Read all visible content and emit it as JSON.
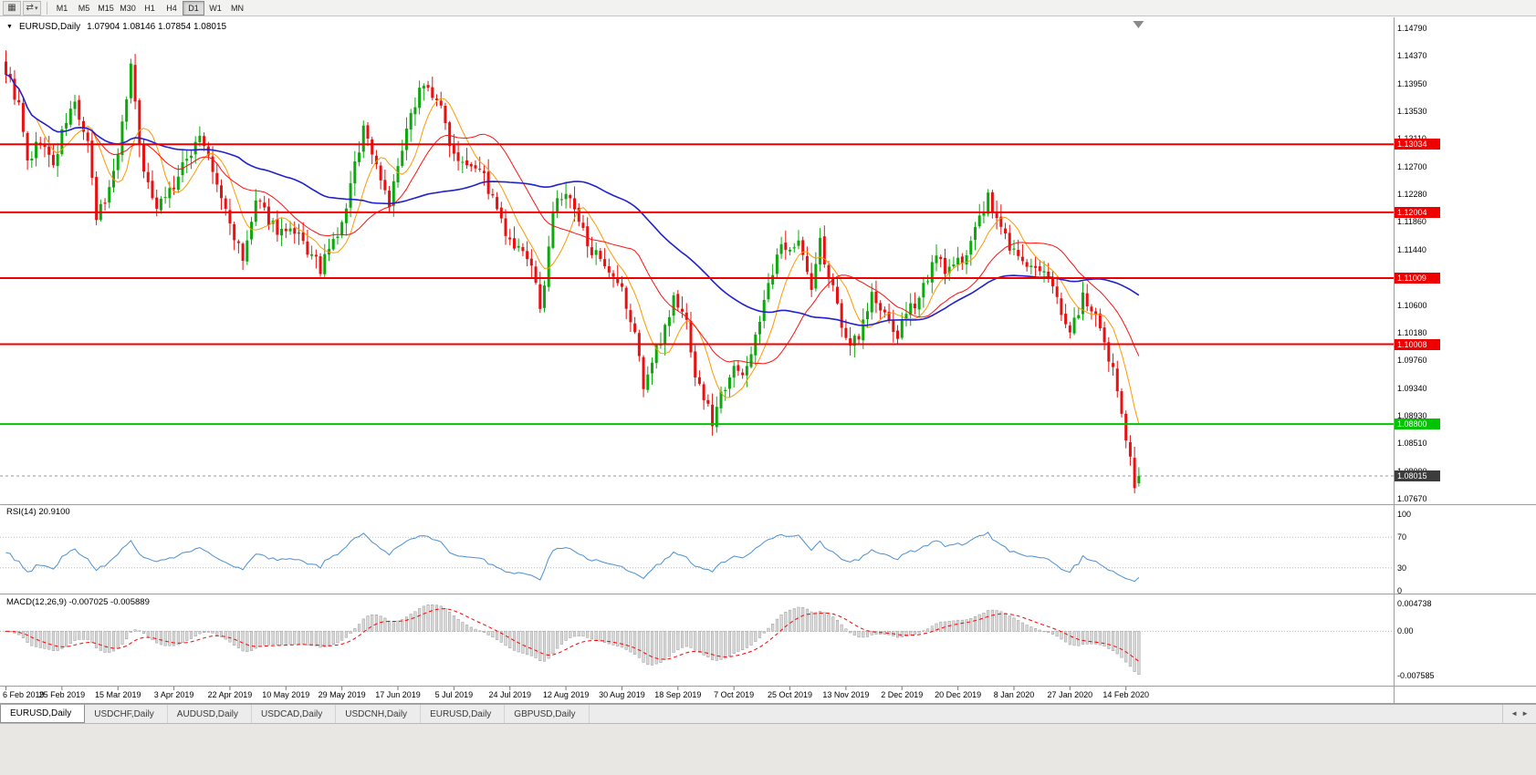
{
  "toolbar": {
    "icons": [
      {
        "name": "chart-grid-icon",
        "glyph": "▦"
      },
      {
        "name": "layout-icon",
        "glyph": "⇄",
        "caret": "▾"
      }
    ],
    "timeframes": [
      "M1",
      "M5",
      "M15",
      "M30",
      "H1",
      "H4",
      "D1",
      "W1",
      "MN"
    ],
    "active_timeframe": "D1"
  },
  "chart": {
    "dropdown_glyph": "▼",
    "symbol_timeframe": "EURUSD,Daily",
    "ohlc": "1.07904 1.08146 1.07854 1.08015"
  },
  "tabs": {
    "items": [
      {
        "label": "EURUSD,Daily",
        "active": true
      },
      {
        "label": "USDCHF,Daily",
        "active": false
      },
      {
        "label": "AUDUSD,Daily",
        "active": false
      },
      {
        "label": "USDCAD,Daily",
        "active": false
      },
      {
        "label": "USDCNH,Daily",
        "active": false
      },
      {
        "label": "EURUSD,Daily",
        "active": false
      },
      {
        "label": "GBPUSD,Daily",
        "active": false
      }
    ],
    "scroll_left_glyph": "◄",
    "scroll_right_glyph": "►"
  },
  "chart_data": {
    "type": "candlestick",
    "symbol": "EURUSD",
    "period": "Daily",
    "price_axis": {
      "max": 1.1479,
      "min": 1.0767,
      "labels": [
        "1.14790",
        "1.14370",
        "1.13950",
        "1.13530",
        "1.13110",
        "1.12700",
        "1.12280",
        "1.11860",
        "1.11440",
        "1.11020",
        "1.10600",
        "1.10180",
        "1.09760",
        "1.09340",
        "1.08930",
        "1.08510",
        "1.08090",
        "1.07670"
      ]
    },
    "date_labels": [
      "6 Feb 2019",
      "25 Feb 2019",
      "15 Mar 2019",
      "3 Apr 2019",
      "22 Apr 2019",
      "10 May 2019",
      "29 May 2019",
      "17 Jun 2019",
      "5 Jul 2019",
      "24 Jul 2019",
      "12 Aug 2019",
      "30 Aug 2019",
      "18 Sep 2019",
      "7 Oct 2019",
      "25 Oct 2019",
      "13 Nov 2019",
      "2 Dec 2019",
      "20 Dec 2019",
      "8 Jan 2020",
      "27 Jan 2020",
      "14 Feb 2020"
    ],
    "candles_per_date_label": 13,
    "close_waypoints": [
      [
        0,
        1.1415
      ],
      [
        3,
        1.136
      ],
      [
        5,
        1.1275
      ],
      [
        8,
        1.131
      ],
      [
        11,
        1.127
      ],
      [
        14,
        1.134
      ],
      [
        16,
        1.1365
      ],
      [
        19,
        1.13
      ],
      [
        21,
        1.119
      ],
      [
        24,
        1.1235
      ],
      [
        27,
        1.133
      ],
      [
        29,
        1.1425
      ],
      [
        32,
        1.1255
      ],
      [
        35,
        1.1215
      ],
      [
        39,
        1.124
      ],
      [
        45,
        1.132
      ],
      [
        49,
        1.124
      ],
      [
        53,
        1.1165
      ],
      [
        55,
        1.1125
      ],
      [
        58,
        1.1215
      ],
      [
        63,
        1.1175
      ],
      [
        68,
        1.116
      ],
      [
        73,
        1.1115
      ],
      [
        78,
        1.118
      ],
      [
        83,
        1.133
      ],
      [
        89,
        1.1215
      ],
      [
        96,
        1.1395
      ],
      [
        100,
        1.1375
      ],
      [
        104,
        1.129
      ],
      [
        110,
        1.127
      ],
      [
        117,
        1.115
      ],
      [
        122,
        1.1125
      ],
      [
        124,
        1.1045
      ],
      [
        127,
        1.1205
      ],
      [
        130,
        1.123
      ],
      [
        134,
        1.117
      ],
      [
        139,
        1.111
      ],
      [
        143,
        1.108
      ],
      [
        147,
        1.099
      ],
      [
        148,
        1.0935
      ],
      [
        152,
        1.101
      ],
      [
        155,
        1.107
      ],
      [
        158,
        1.1035
      ],
      [
        160,
        1.0955
      ],
      [
        164,
        1.0885
      ],
      [
        166,
        1.0925
      ],
      [
        169,
        1.0975
      ],
      [
        171,
        1.0945
      ],
      [
        175,
        1.104
      ],
      [
        180,
        1.115
      ],
      [
        184,
        1.1155
      ],
      [
        187,
        1.1085
      ],
      [
        189,
        1.1155
      ],
      [
        195,
        1.1005
      ],
      [
        198,
        1.1015
      ],
      [
        201,
        1.1075
      ],
      [
        204,
        1.104
      ],
      [
        207,
        1.1015
      ],
      [
        211,
        1.1065
      ],
      [
        216,
        1.113
      ],
      [
        219,
        1.111
      ],
      [
        222,
        1.113
      ],
      [
        228,
        1.122
      ],
      [
        231,
        1.1175
      ],
      [
        234,
        1.114
      ],
      [
        238,
        1.1115
      ],
      [
        243,
        1.1095
      ],
      [
        247,
        1.1015
      ],
      [
        250,
        1.1075
      ],
      [
        253,
        1.1035
      ],
      [
        255,
        1.0995
      ],
      [
        257,
        1.096
      ],
      [
        259,
        1.09
      ],
      [
        261,
        1.083
      ],
      [
        262,
        1.0788
      ],
      [
        263,
        1.08015
      ]
    ],
    "final_candle": {
      "o": 1.07904,
      "h": 1.08146,
      "l": 1.07854,
      "c": 1.08015
    },
    "current_price": {
      "value": 1.08015,
      "label": "1.08015",
      "tag_color": "#3c3c3c"
    },
    "horizontal_lines": [
      {
        "price": 1.13034,
        "label": "1.13034",
        "color": "#ee0000",
        "width": 2
      },
      {
        "price": 1.12004,
        "label": "1.12004",
        "color": "#ee0000",
        "width": 2
      },
      {
        "price": 1.11009,
        "label": "1.11009",
        "color": "#ee0000",
        "width": 2
      },
      {
        "price": 1.10008,
        "label": "1.10008",
        "color": "#ee0000",
        "width": 2
      },
      {
        "price": 1.088,
        "label": "1.08800",
        "color": "#00c400",
        "width": 2
      }
    ],
    "moving_averages": [
      {
        "name": "ma-fast",
        "period": 8,
        "color": "#ff9900",
        "width": 1
      },
      {
        "name": "ma-medium",
        "period": 21,
        "color": "#ff1010",
        "width": 1
      },
      {
        "name": "ma-slow",
        "period": 55,
        "color": "#2121cc",
        "width": 1.6
      }
    ],
    "candle_colors": {
      "up": "#0da80d",
      "down": "#e81010"
    },
    "indicators": [
      {
        "name": "RSI",
        "label": "RSI(14) 20.9100",
        "period": 14,
        "last_value": 20.91,
        "line_color": "#4a8fd2",
        "levels": [
          100,
          70,
          30,
          0
        ],
        "level_labels": [
          "100",
          "70",
          "30",
          "0"
        ],
        "dotted_levels": [
          70,
          30
        ]
      },
      {
        "name": "MACD",
        "label": "MACD(12,26,9) -0.007025 -0.005889",
        "params": "12,26,9",
        "last_main": -0.007025,
        "last_signal": -0.005889,
        "axis": {
          "top": 0.004738,
          "zero": 0,
          "bottom": -0.007585
        },
        "axis_labels": [
          "0.004738",
          "0.00",
          "-0.007585"
        ],
        "histogram_fill": "#d9d9d9",
        "histogram_stroke": "#9a9a9a",
        "signal_color": "#ff0000"
      }
    ]
  }
}
